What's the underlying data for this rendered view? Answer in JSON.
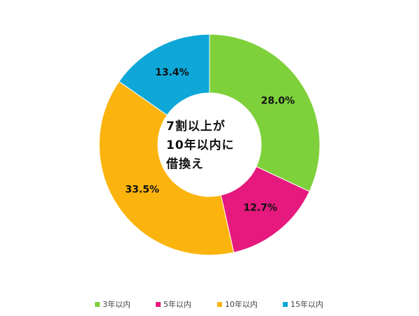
{
  "chart_data": {
    "type": "pie",
    "categories": [
      "3年以内",
      "5年以内",
      "10年以内",
      "15年以内"
    ],
    "values": [
      28.0,
      12.7,
      33.5,
      13.4
    ],
    "value_labels": [
      "28.0%",
      "12.7%",
      "33.5%",
      "13.4%"
    ],
    "colors": [
      "#7fd13b",
      "#e6197e",
      "#fbb40e",
      "#0ea7d8"
    ],
    "title": "",
    "center_text": [
      "7割以上が",
      "10年以内に",
      "借換え"
    ],
    "legend": {
      "position": "bottom",
      "items": [
        "3年以内",
        "5年以内",
        "10年以内",
        "15年以内"
      ]
    },
    "donut": true
  }
}
